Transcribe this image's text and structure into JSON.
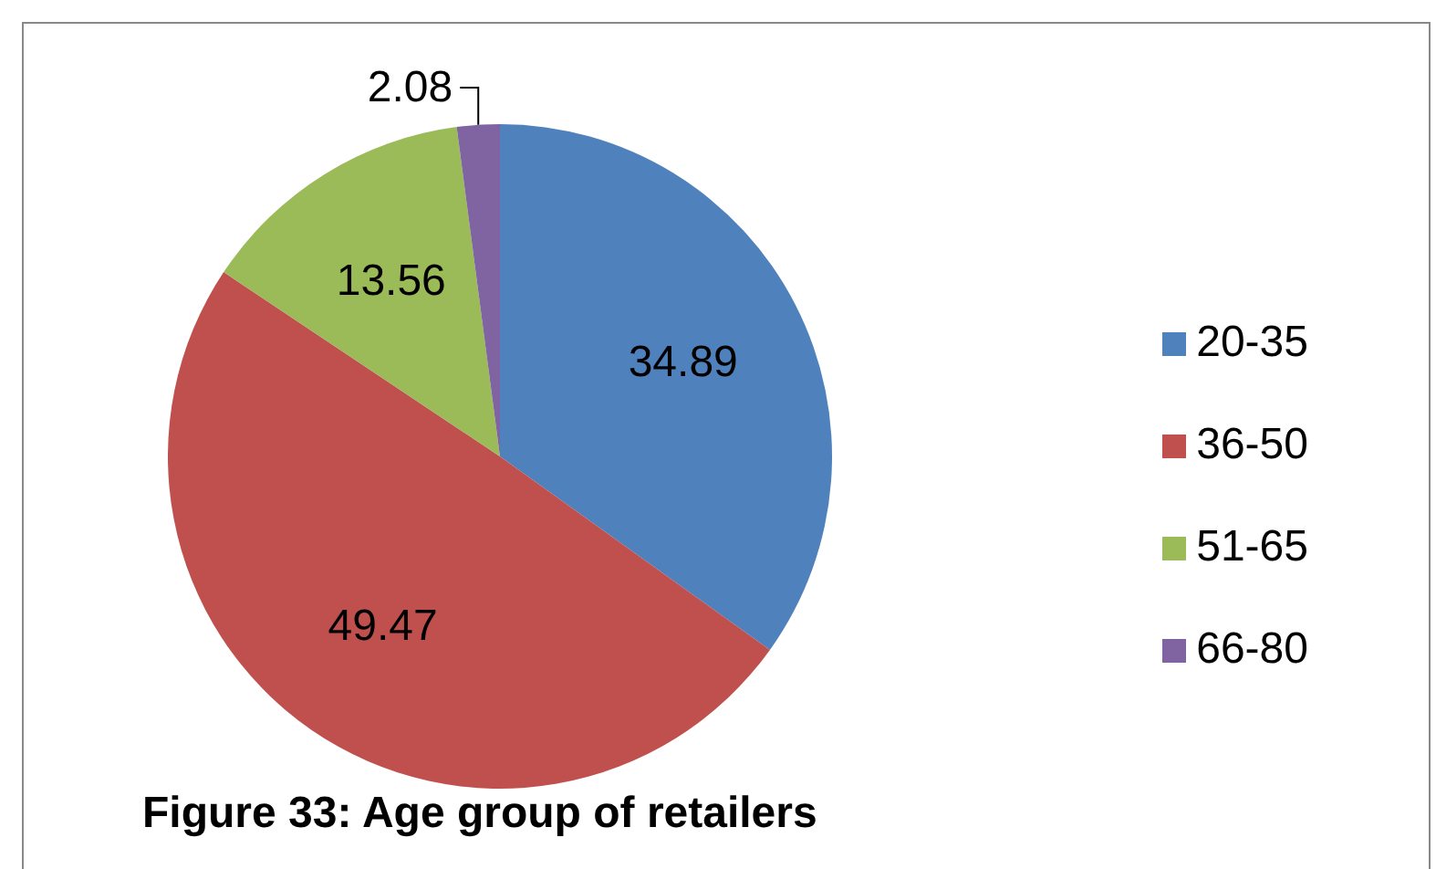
{
  "chart_data": {
    "type": "pie",
    "title": "Figure 33: Age group of retailers",
    "categories": [
      "20-35",
      "36-50",
      "51-65",
      "66-80"
    ],
    "values": [
      34.89,
      49.47,
      13.56,
      2.08
    ],
    "colors": [
      "#4f81bd",
      "#c0504d",
      "#9bbb59",
      "#8064a2"
    ],
    "data_labels": true,
    "legend": "right"
  }
}
